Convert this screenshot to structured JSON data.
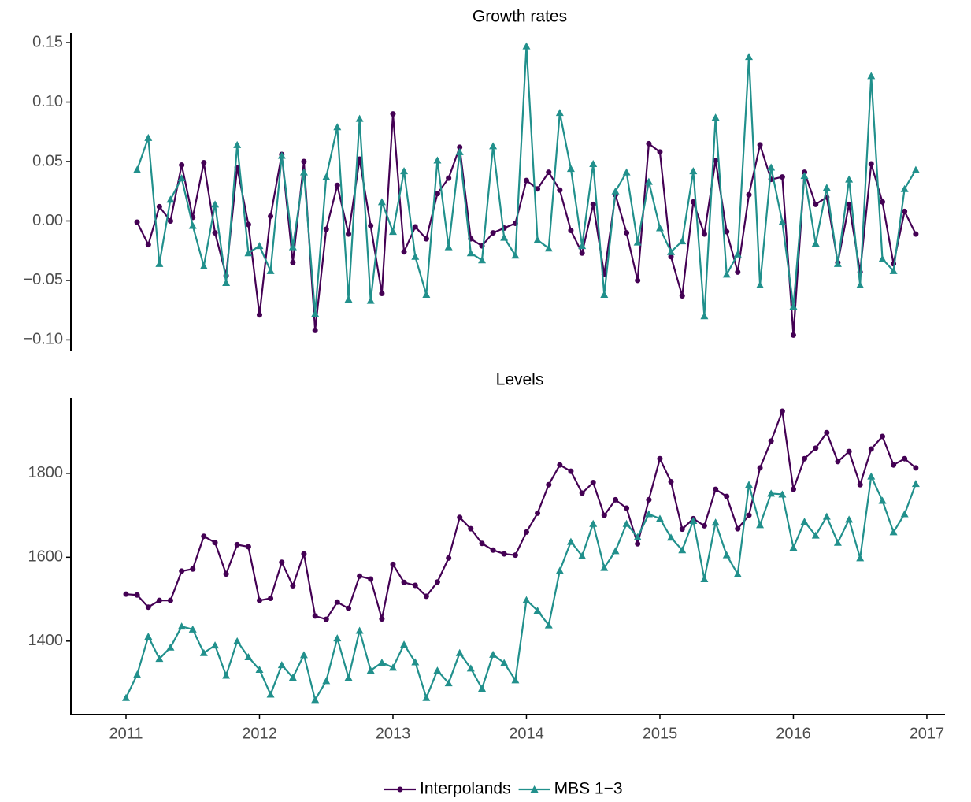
{
  "chart_data": [
    {
      "type": "line",
      "title": "Growth rates",
      "x": [
        2011,
        2011.083,
        2011.167,
        2011.25,
        2011.333,
        2011.417,
        2011.5,
        2011.583,
        2011.667,
        2011.75,
        2011.833,
        2011.917,
        2012,
        2012.083,
        2012.167,
        2012.25,
        2012.333,
        2012.417,
        2012.5,
        2012.583,
        2012.667,
        2012.75,
        2012.833,
        2012.917,
        2013,
        2013.083,
        2013.167,
        2013.25,
        2013.333,
        2013.417,
        2013.5,
        2013.583,
        2013.667,
        2013.75,
        2013.833,
        2013.917,
        2014,
        2014.083,
        2014.167,
        2014.25,
        2014.333,
        2014.417,
        2014.5,
        2014.583,
        2014.667,
        2014.75,
        2014.833,
        2014.917,
        2015,
        2015.083,
        2015.167,
        2015.25,
        2015.333,
        2015.417,
        2015.5,
        2015.583,
        2015.667,
        2015.75,
        2015.833,
        2015.917,
        2016,
        2016.083,
        2016.167,
        2016.25,
        2016.333,
        2016.417,
        2016.5,
        2016.583,
        2016.667,
        2016.75,
        2016.833,
        2016.917
      ],
      "xlim": [
        2010.587,
        2017.136
      ],
      "ylim": [
        -0.109,
        0.158
      ],
      "yticks": [
        {
          "value": -0.1,
          "label": "−0.10"
        },
        {
          "value": -0.05,
          "label": "−0.05"
        },
        {
          "value": 0,
          "label": "0.00"
        },
        {
          "value": 0.05,
          "label": "0.05"
        },
        {
          "value": 0.1,
          "label": "0.10"
        },
        {
          "value": 0.15,
          "label": "0.15"
        }
      ],
      "series": [
        {
          "name": "Interpolands",
          "color": "#440154",
          "marker": "circle",
          "values": [
            null,
            -0.001,
            -0.02,
            0.012,
            0.0,
            0.047,
            0.003,
            0.049,
            -0.01,
            -0.046,
            0.045,
            -0.003,
            -0.079,
            0.004,
            0.056,
            -0.035,
            0.05,
            -0.092,
            -0.007,
            0.03,
            -0.011,
            0.052,
            -0.004,
            -0.061,
            0.09,
            -0.026,
            -0.005,
            -0.015,
            0.023,
            0.036,
            0.062,
            -0.015,
            -0.021,
            -0.01,
            -0.006,
            -0.002,
            0.034,
            0.027,
            0.041,
            0.026,
            -0.008,
            -0.027,
            0.014,
            -0.045,
            0.022,
            -0.01,
            -0.05,
            0.065,
            0.058,
            -0.03,
            -0.063,
            0.016,
            -0.011,
            0.051,
            -0.009,
            -0.043,
            0.022,
            0.064,
            0.035,
            0.037,
            -0.096,
            0.041,
            0.014,
            0.02,
            -0.035,
            0.014,
            -0.043,
            0.048,
            0.016,
            -0.036,
            0.008,
            -0.011
          ]
        },
        {
          "name": "MBS 1−3",
          "color": "#21908c",
          "marker": "triangle",
          "values": [
            null,
            0.043,
            0.07,
            -0.036,
            0.018,
            0.036,
            -0.004,
            -0.038,
            0.014,
            -0.052,
            0.064,
            -0.027,
            -0.021,
            -0.042,
            0.055,
            -0.022,
            0.041,
            -0.078,
            0.037,
            0.079,
            -0.066,
            0.086,
            -0.067,
            0.016,
            -0.009,
            0.042,
            -0.03,
            -0.062,
            0.051,
            -0.022,
            0.058,
            -0.027,
            -0.033,
            0.063,
            -0.014,
            -0.029,
            0.147,
            -0.016,
            -0.023,
            0.091,
            0.044,
            -0.021,
            0.048,
            -0.062,
            0.025,
            0.041,
            -0.018,
            0.033,
            -0.006,
            -0.026,
            -0.017,
            0.042,
            -0.08,
            0.087,
            -0.045,
            -0.028,
            0.138,
            -0.054,
            0.045,
            -0.001,
            -0.072,
            0.038,
            -0.019,
            0.028,
            -0.036,
            0.035,
            -0.054,
            0.122,
            -0.032,
            -0.042,
            0.027,
            0.043
          ]
        }
      ]
    },
    {
      "type": "line",
      "title": "Levels",
      "x": [
        2011,
        2011.083,
        2011.167,
        2011.25,
        2011.333,
        2011.417,
        2011.5,
        2011.583,
        2011.667,
        2011.75,
        2011.833,
        2011.917,
        2012,
        2012.083,
        2012.167,
        2012.25,
        2012.333,
        2012.417,
        2012.5,
        2012.583,
        2012.667,
        2012.75,
        2012.833,
        2012.917,
        2013,
        2013.083,
        2013.167,
        2013.25,
        2013.333,
        2013.417,
        2013.5,
        2013.583,
        2013.667,
        2013.75,
        2013.833,
        2013.917,
        2014,
        2014.083,
        2014.167,
        2014.25,
        2014.333,
        2014.417,
        2014.5,
        2014.583,
        2014.667,
        2014.75,
        2014.833,
        2014.917,
        2015,
        2015.083,
        2015.167,
        2015.25,
        2015.333,
        2015.417,
        2015.5,
        2015.583,
        2015.667,
        2015.75,
        2015.833,
        2015.917,
        2016,
        2016.083,
        2016.167,
        2016.25,
        2016.333,
        2016.417,
        2016.5,
        2016.583,
        2016.667,
        2016.75,
        2016.833,
        2016.917
      ],
      "xlim": [
        2010.587,
        2017.136
      ],
      "xticks": [
        2011,
        2012,
        2013,
        2014,
        2015,
        2016,
        2017
      ],
      "ylim": [
        1225,
        1980
      ],
      "yticks": [
        1400,
        1600,
        1800
      ],
      "legend": "bottom",
      "series": [
        {
          "name": "Interpolands",
          "color": "#440154",
          "marker": "circle",
          "values": [
            1512,
            1510,
            1481,
            1497,
            1497,
            1567,
            1572,
            1650,
            1635,
            1560,
            1630,
            1625,
            1497,
            1502,
            1588,
            1532,
            1608,
            1460,
            1452,
            1493,
            1478,
            1555,
            1548,
            1453,
            1583,
            1540,
            1533,
            1507,
            1541,
            1598,
            1695,
            1668,
            1633,
            1617,
            1608,
            1605,
            1660,
            1705,
            1773,
            1820,
            1805,
            1753,
            1778,
            1700,
            1737,
            1717,
            1632,
            1737,
            1835,
            1780,
            1667,
            1692,
            1675,
            1762,
            1745,
            1668,
            1700,
            1813,
            1877,
            1948,
            1762,
            1835,
            1860,
            1897,
            1828,
            1852,
            1773,
            1858,
            1888,
            1820,
            1835,
            1813
          ]
        },
        {
          "name": "MBS 1−3",
          "color": "#21908c",
          "marker": "triangle",
          "values": [
            1265,
            1320,
            1411,
            1358,
            1385,
            1435,
            1428,
            1372,
            1390,
            1318,
            1400,
            1362,
            1332,
            1273,
            1343,
            1313,
            1367,
            1260,
            1305,
            1407,
            1313,
            1425,
            1330,
            1349,
            1337,
            1392,
            1350,
            1265,
            1330,
            1300,
            1372,
            1335,
            1287,
            1368,
            1348,
            1307,
            1498,
            1473,
            1438,
            1568,
            1637,
            1603,
            1680,
            1575,
            1615,
            1680,
            1648,
            1703,
            1692,
            1647,
            1617,
            1687,
            1548,
            1683,
            1605,
            1560,
            1773,
            1677,
            1752,
            1750,
            1623,
            1685,
            1652,
            1697,
            1635,
            1690,
            1598,
            1793,
            1735,
            1660,
            1703,
            1775
          ]
        }
      ]
    }
  ]
}
